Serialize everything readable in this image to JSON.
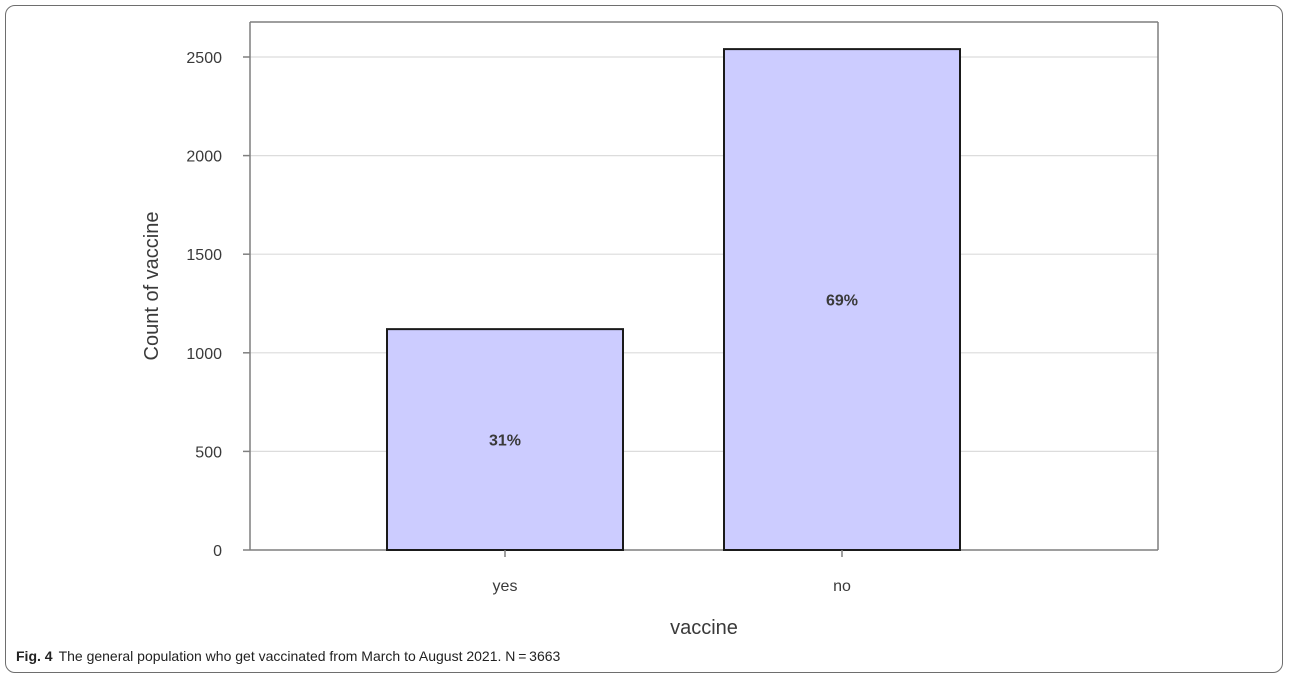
{
  "chart_data": {
    "type": "bar",
    "categories": [
      "yes",
      "no"
    ],
    "values": [
      1120,
      2540
    ],
    "bar_labels": [
      "31%",
      "69%"
    ],
    "xlabel": "vaccine",
    "ylabel": "Count of vaccine",
    "ylim": [
      0,
      2500
    ],
    "yticks": [
      "0",
      "500",
      "1000",
      "1500",
      "2000",
      "2500"
    ],
    "ytick_values": [
      0,
      500,
      1000,
      1500,
      2000,
      2500
    ],
    "grid": true,
    "legend": "none",
    "colors": {
      "bar_fill": "#ccccff",
      "bar_stroke": "#1a1a1a",
      "grid": "#dcdcdc",
      "axis": "#7f7f7f",
      "text": "#3a3a3a"
    }
  },
  "caption": {
    "label": "Fig. 4",
    "text": "The general population who get vaccinated from March to August 2021. N = 3663"
  }
}
